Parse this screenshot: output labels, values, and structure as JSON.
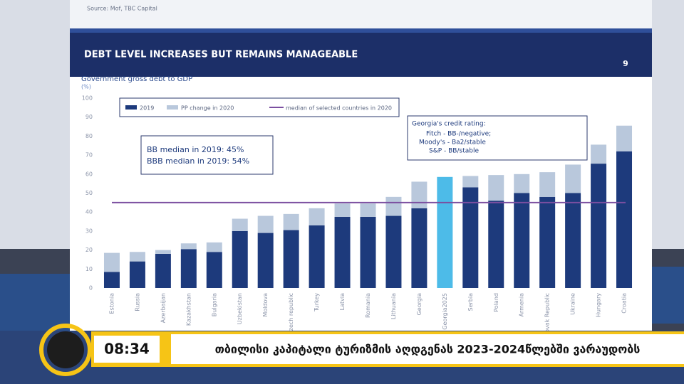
{
  "slide": {
    "source": "Source: Mof, TBC Capital",
    "title": "DEBT LEVEL INCREASES BUT REMAINS MANAGEABLE",
    "page_number": "9",
    "ratings": {
      "heading": "Georgia's credit rating:",
      "lines": [
        "Fitch - BB-/negative;",
        "Moody's - Ba2/stable",
        "S&P - BB/stable"
      ]
    },
    "medians": [
      "BB median in 2019: 45%",
      "BBB median in 2019: 54%"
    ]
  },
  "chart_data": {
    "type": "stacked_bar",
    "title": "Government gross debt to GDP",
    "y_label": "(%)",
    "categories": [
      "Estonia",
      "Russia",
      "Azerbaijan",
      "Kazakhstan",
      "Bulgaria",
      "Uzbekistan",
      "Moldova",
      "Czech republic",
      "Turkey",
      "Latvia",
      "Romania",
      "Lithuania",
      "Georgia",
      "Georgia2025",
      "Serbia",
      "Poland",
      "Armenia",
      "Slovak Republic",
      "Ukraine",
      "Hungary",
      "Croatia"
    ],
    "series": [
      {
        "name": "2019",
        "color": "#1d3a7c",
        "highlight": {
          "index": 13,
          "color": "#4dbbe8"
        },
        "values": [
          8.5,
          14,
          18,
          20.5,
          19,
          30,
          29,
          30.5,
          33,
          37.5,
          37.5,
          38,
          42,
          58.5,
          53,
          46,
          50,
          48,
          50,
          65.5,
          72
        ]
      },
      {
        "name": "PP change in 2020",
        "color": "#b9c8dc",
        "values": [
          10,
          5,
          2,
          3,
          5,
          6.5,
          9,
          8.5,
          9,
          7,
          7,
          10,
          14,
          null,
          6,
          13.5,
          10,
          13,
          15,
          10,
          13.5
        ]
      }
    ],
    "median": {
      "name": "median of selected countries in 2020",
      "value": 45,
      "color": "#7b4fa0"
    },
    "ylim": [
      0,
      100
    ],
    "yticks": [
      0,
      10,
      20,
      30,
      40,
      50,
      60,
      70,
      80,
      90,
      100
    ]
  },
  "broadcast": {
    "time": "08:34",
    "ticker": "თბილისი კაპიტალი ტურიზმის აღდგენას 2023-2024წლებში ვარაუდობს"
  }
}
